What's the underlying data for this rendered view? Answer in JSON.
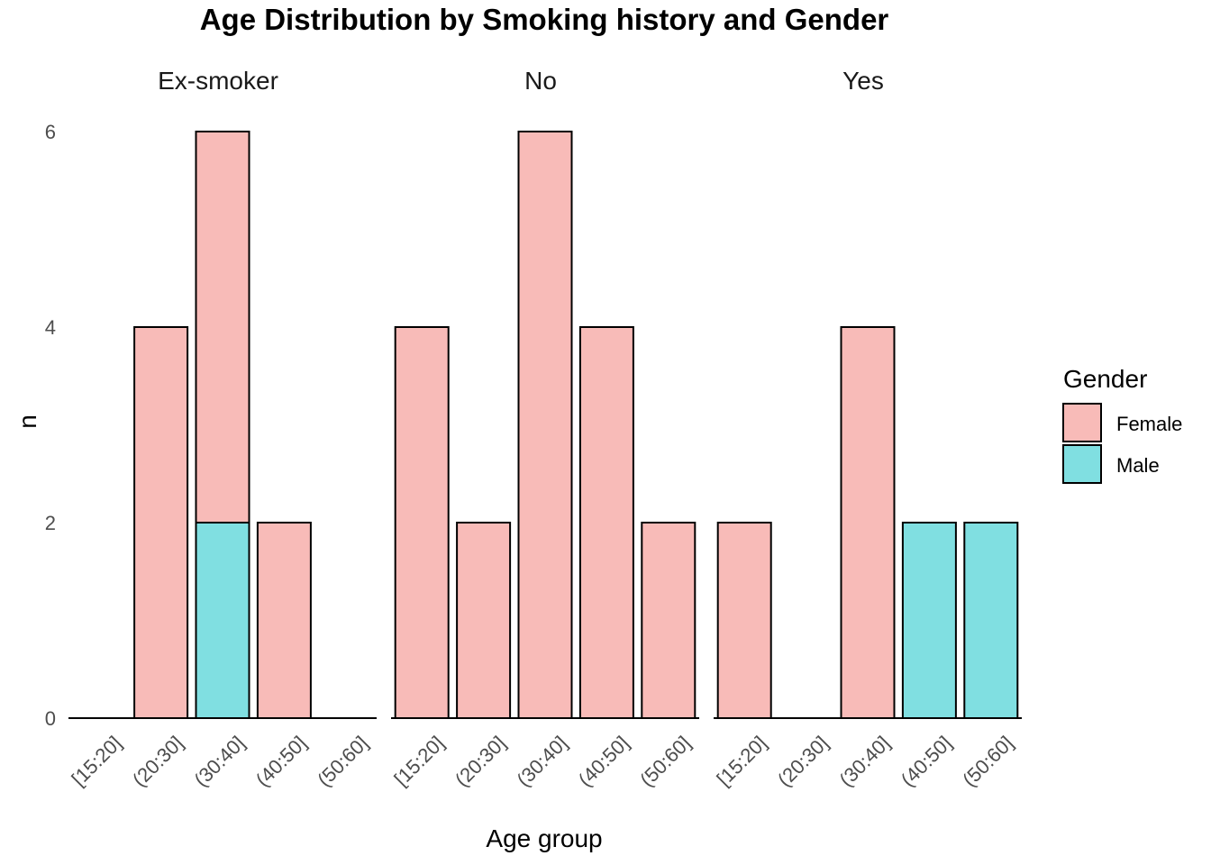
{
  "chart_data": {
    "type": "bar",
    "stacked": true,
    "title": "Age Distribution by Smoking history and Gender",
    "xlabel": "Age group",
    "ylabel": "n",
    "ylim": [
      0,
      6.2
    ],
    "yticks": [
      0,
      2,
      4,
      6
    ],
    "grid": false,
    "legend": {
      "title": "Gender",
      "position": "right"
    },
    "categories": [
      "[15:20]",
      "(20:30]",
      "(30:40]",
      "(40:50]",
      "(50:60]"
    ],
    "series": [
      {
        "name": "Female",
        "color": "#F8BBB8"
      },
      {
        "name": "Male",
        "color": "#80DFE1"
      }
    ],
    "facets": [
      {
        "name": "Ex-smoker",
        "values": {
          "Female": [
            0,
            4,
            4,
            2,
            0
          ],
          "Male": [
            0,
            0,
            2,
            0,
            0
          ]
        }
      },
      {
        "name": "No",
        "values": {
          "Female": [
            4,
            2,
            6,
            4,
            2
          ],
          "Male": [
            0,
            0,
            0,
            0,
            0
          ]
        }
      },
      {
        "name": "Yes",
        "values": {
          "Female": [
            2,
            0,
            4,
            0,
            0
          ],
          "Male": [
            0,
            0,
            0,
            2,
            2
          ]
        }
      }
    ]
  }
}
